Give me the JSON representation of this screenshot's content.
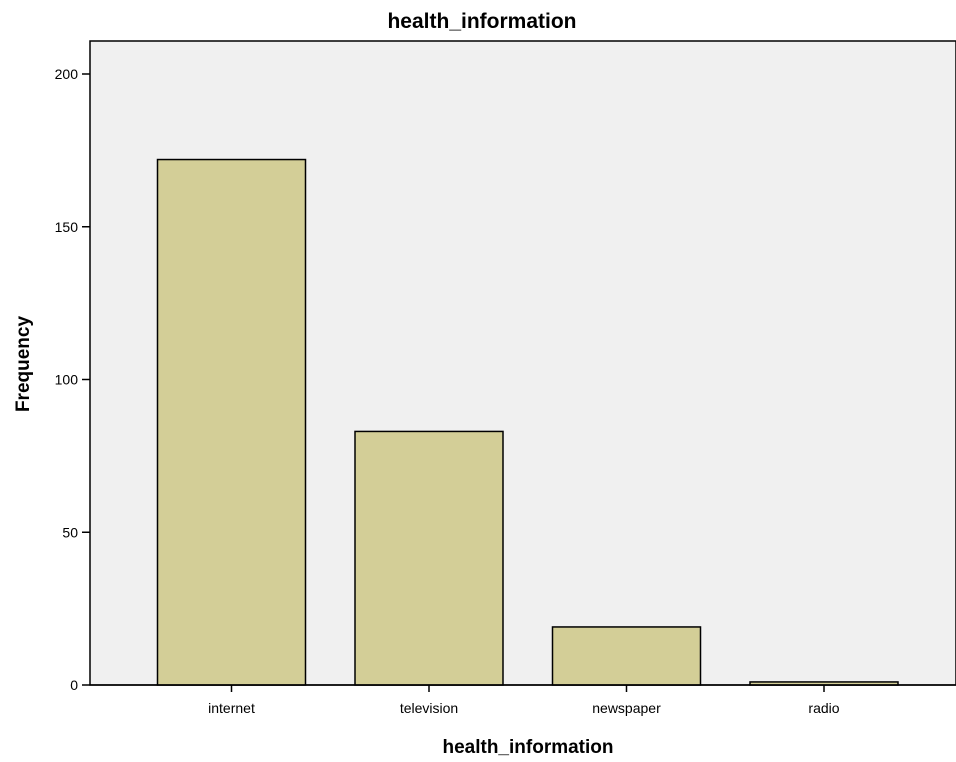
{
  "chart_data": {
    "type": "bar",
    "title": "health_information",
    "xlabel": "health_information",
    "ylabel": "Frequency",
    "categories": [
      "internet",
      "television",
      "newspaper",
      "radio"
    ],
    "values": [
      172,
      83,
      19,
      1
    ],
    "ylim": [
      0,
      210
    ],
    "yticks": [
      "0",
      "50",
      "100",
      "150",
      "200"
    ],
    "grid": false,
    "colors": {
      "bar_fill": "#d3ce97",
      "bar_stroke": "#000000",
      "plot_background": "#f0f0f0"
    }
  }
}
